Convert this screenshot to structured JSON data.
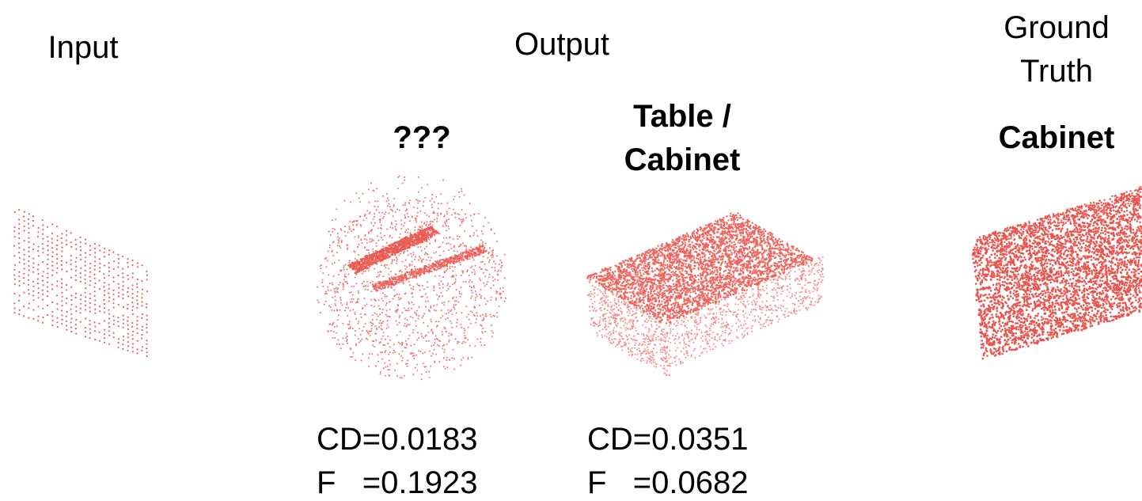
{
  "columns": {
    "input": "Input",
    "output": "Output",
    "ground_truth": "Ground Truth"
  },
  "outputs": [
    {
      "label": "???",
      "cd": "CD=0.0183",
      "f": "F   =0.1923"
    },
    {
      "label": "Table / Cabinet",
      "cd": "CD=0.0351",
      "f": "F   =0.0682"
    }
  ],
  "ground_truth_label": "Cabinet"
}
